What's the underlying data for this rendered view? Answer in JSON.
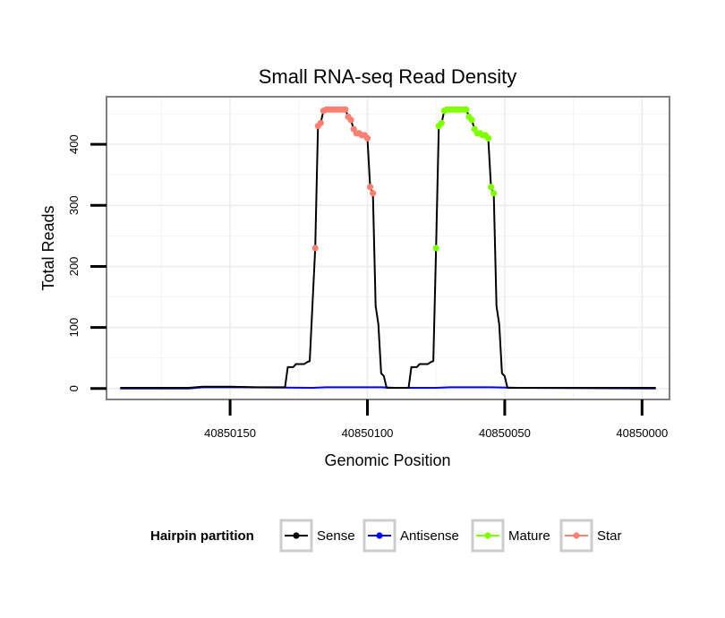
{
  "chart_data": {
    "type": "line",
    "title": "Small RNA-seq Read Density",
    "xlabel": "Genomic Position",
    "ylabel": "Total Reads",
    "xlim": [
      40850195,
      40849990
    ],
    "ylim": [
      -18,
      478
    ],
    "x_reversed": true,
    "grid": true,
    "x_ticks": [
      40850150,
      40850100,
      40850050,
      40850000
    ],
    "x_tick_labels": [
      "40850150",
      "40850100",
      "40850050",
      "40850000"
    ],
    "y_ticks": [
      0,
      100,
      200,
      300,
      400
    ],
    "y_tick_labels": [
      "0",
      "100",
      "200",
      "300",
      "400"
    ],
    "legend": {
      "title": "Hairpin partition",
      "position": "bottom",
      "entries": [
        {
          "name": "Sense",
          "color": "#000000"
        },
        {
          "name": "Antisense",
          "color": "#0000ff"
        },
        {
          "name": "Mature",
          "color": "#7fff00"
        },
        {
          "name": "Star",
          "color": "#fa8072"
        }
      ]
    },
    "series": [
      {
        "name": "Sense",
        "color": "#000000",
        "points": [
          [
            40850190,
            1
          ],
          [
            40850165,
            1
          ],
          [
            40850160,
            3
          ],
          [
            40850150,
            3
          ],
          [
            40850140,
            2
          ],
          [
            40850130,
            2
          ],
          [
            40850129,
            35
          ],
          [
            40850127,
            35
          ],
          [
            40850126,
            40
          ],
          [
            40850123,
            40
          ],
          [
            40850122,
            43
          ],
          [
            40850121,
            45
          ],
          [
            40850119,
            230
          ],
          [
            40850118,
            430
          ],
          [
            40850117,
            435
          ],
          [
            40850116,
            455
          ],
          [
            40850115,
            457
          ],
          [
            40850110,
            457
          ],
          [
            40850108,
            457
          ],
          [
            40850107,
            445
          ],
          [
            40850106,
            440
          ],
          [
            40850105,
            425
          ],
          [
            40850104,
            418
          ],
          [
            40850101,
            415
          ],
          [
            40850100,
            410
          ],
          [
            40850099,
            330
          ],
          [
            40850098,
            320
          ],
          [
            40850097,
            135
          ],
          [
            40850096,
            105
          ],
          [
            40850095,
            25
          ],
          [
            40850094,
            20
          ],
          [
            40850093,
            1
          ],
          [
            40850085,
            1
          ],
          [
            40850084,
            35
          ],
          [
            40850082,
            35
          ],
          [
            40850081,
            40
          ],
          [
            40850078,
            40
          ],
          [
            40850077,
            43
          ],
          [
            40850076,
            45
          ],
          [
            40850075,
            230
          ],
          [
            40850074,
            430
          ],
          [
            40850073,
            435
          ],
          [
            40850072,
            455
          ],
          [
            40850071,
            457
          ],
          [
            40850066,
            457
          ],
          [
            40850064,
            457
          ],
          [
            40850063,
            445
          ],
          [
            40850062,
            440
          ],
          [
            40850061,
            425
          ],
          [
            40850060,
            418
          ],
          [
            40850057,
            415
          ],
          [
            40850056,
            410
          ],
          [
            40850055,
            330
          ],
          [
            40850054,
            320
          ],
          [
            40850053,
            135
          ],
          [
            40850052,
            105
          ],
          [
            40850051,
            25
          ],
          [
            40850050,
            20
          ],
          [
            40850049,
            1
          ],
          [
            40849995,
            1
          ]
        ]
      },
      {
        "name": "Antisense",
        "color": "#0000ff",
        "points": [
          [
            40850190,
            0
          ],
          [
            40850165,
            0
          ],
          [
            40850160,
            2
          ],
          [
            40850145,
            2
          ],
          [
            40850120,
            1
          ],
          [
            40850115,
            2
          ],
          [
            40850095,
            2
          ],
          [
            40850090,
            1
          ],
          [
            40850075,
            1
          ],
          [
            40850070,
            2
          ],
          [
            40850055,
            2
          ],
          [
            40850045,
            1
          ],
          [
            40849995,
            0
          ]
        ]
      },
      {
        "name": "Mature",
        "color": "#7fff00",
        "points": [
          [
            40850075,
            230
          ],
          [
            40850074,
            430
          ],
          [
            40850073,
            435
          ],
          [
            40850072,
            455
          ],
          [
            40850071,
            457
          ],
          [
            40850070,
            457
          ],
          [
            40850069,
            457
          ],
          [
            40850068,
            457
          ],
          [
            40850067,
            457
          ],
          [
            40850066,
            457
          ],
          [
            40850065,
            457
          ],
          [
            40850064,
            457
          ],
          [
            40850063,
            445
          ],
          [
            40850062,
            440
          ],
          [
            40850061,
            425
          ],
          [
            40850060,
            418
          ],
          [
            40850059,
            418
          ],
          [
            40850058,
            415
          ],
          [
            40850057,
            415
          ],
          [
            40850056,
            410
          ],
          [
            40850055,
            330
          ],
          [
            40850054,
            320
          ]
        ]
      },
      {
        "name": "Star",
        "color": "#fa8072",
        "points": [
          [
            40850119,
            230
          ],
          [
            40850118,
            430
          ],
          [
            40850117,
            435
          ],
          [
            40850116,
            455
          ],
          [
            40850115,
            457
          ],
          [
            40850114,
            457
          ],
          [
            40850113,
            457
          ],
          [
            40850112,
            457
          ],
          [
            40850111,
            457
          ],
          [
            40850110,
            457
          ],
          [
            40850109,
            457
          ],
          [
            40850108,
            457
          ],
          [
            40850107,
            445
          ],
          [
            40850106,
            440
          ],
          [
            40850105,
            425
          ],
          [
            40850104,
            418
          ],
          [
            40850103,
            418
          ],
          [
            40850102,
            415
          ],
          [
            40850101,
            415
          ],
          [
            40850100,
            410
          ],
          [
            40850099,
            330
          ],
          [
            40850098,
            320
          ]
        ]
      }
    ]
  }
}
